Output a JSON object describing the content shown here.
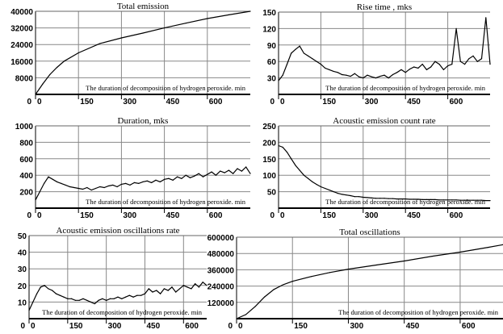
{
  "chart_data": [
    {
      "type": "line",
      "title": "Total emission",
      "xlabel": "The duration  of decomposition of hydrogen peroxide. min",
      "ylabel": "",
      "xlim": [
        0,
        750
      ],
      "ylim": [
        0,
        40000
      ],
      "yticks": [
        "8000",
        "16000",
        "24000",
        "32000",
        "40000"
      ],
      "xticks": [
        "0",
        "150",
        "300",
        "450",
        "600"
      ],
      "y0": "0",
      "grid": true,
      "x": [
        0,
        25,
        50,
        75,
        100,
        150,
        225,
        300,
        375,
        450,
        525,
        600,
        675,
        750
      ],
      "values": [
        0,
        5000,
        9500,
        13000,
        16000,
        20000,
        24500,
        27200,
        29500,
        32000,
        34300,
        36500,
        38300,
        40000
      ]
    },
    {
      "type": "line",
      "title": "Rise time , mks",
      "xlabel": "The duration  of decomposition of hydrogen peroxide. min",
      "ylabel": "",
      "xlim": [
        0,
        750
      ],
      "ylim": [
        0,
        150
      ],
      "yticks": [
        "30",
        "60",
        "90",
        "120",
        "150"
      ],
      "xticks": [
        "0",
        "150",
        "300",
        "450",
        "600"
      ],
      "y0": "0",
      "grid": true,
      "x": [
        0,
        15,
        30,
        45,
        60,
        75,
        90,
        105,
        120,
        135,
        150,
        165,
        180,
        195,
        210,
        225,
        240,
        255,
        270,
        285,
        300,
        315,
        330,
        345,
        360,
        375,
        390,
        405,
        420,
        435,
        450,
        465,
        480,
        495,
        510,
        525,
        540,
        555,
        570,
        585,
        600,
        615,
        630,
        645,
        660,
        675,
        690,
        705,
        720,
        735,
        750
      ],
      "values": [
        25,
        35,
        55,
        75,
        82,
        88,
        75,
        70,
        65,
        60,
        55,
        48,
        45,
        42,
        40,
        36,
        35,
        33,
        38,
        32,
        30,
        35,
        32,
        30,
        33,
        35,
        30,
        36,
        40,
        45,
        40,
        46,
        50,
        48,
        55,
        45,
        50,
        60,
        55,
        45,
        52,
        55,
        120,
        60,
        55,
        65,
        70,
        60,
        65,
        140,
        55
      ]
    },
    {
      "type": "line",
      "title": "Duration, mks",
      "xlabel": "The duration  of decomposition of hydrogen peroxide. min",
      "ylabel": "",
      "xlim": [
        0,
        750
      ],
      "ylim": [
        0,
        1000
      ],
      "yticks": [
        "200",
        "400",
        "600",
        "800",
        "1000"
      ],
      "xticks": [
        "0",
        "150",
        "300",
        "450",
        "600"
      ],
      "y0": "0",
      "grid": true,
      "x": [
        0,
        15,
        30,
        45,
        60,
        75,
        90,
        105,
        120,
        135,
        150,
        165,
        180,
        195,
        210,
        225,
        240,
        255,
        270,
        285,
        300,
        315,
        330,
        345,
        360,
        375,
        390,
        405,
        420,
        435,
        450,
        465,
        480,
        495,
        510,
        525,
        540,
        555,
        570,
        585,
        600,
        615,
        630,
        645,
        660,
        675,
        690,
        705,
        720,
        735,
        750
      ],
      "values": [
        100,
        200,
        300,
        380,
        350,
        320,
        300,
        280,
        260,
        250,
        240,
        230,
        250,
        220,
        240,
        260,
        250,
        270,
        280,
        260,
        290,
        300,
        280,
        310,
        300,
        320,
        330,
        310,
        340,
        320,
        350,
        360,
        340,
        380,
        360,
        400,
        370,
        390,
        420,
        380,
        410,
        440,
        400,
        450,
        430,
        460,
        420,
        480,
        450,
        500,
        420
      ]
    },
    {
      "type": "line",
      "title": "Acoustic emission count rate",
      "xlabel": "The duration  of decomposition of hydrogen peroxide. min",
      "ylabel": "",
      "xlim": [
        0,
        750
      ],
      "ylim": [
        0,
        250
      ],
      "yticks": [
        "50",
        "100",
        "150",
        "200",
        "250"
      ],
      "xticks": [
        "0",
        "150",
        "300",
        "450",
        "600"
      ],
      "y0": "0",
      "grid": true,
      "x": [
        0,
        15,
        30,
        45,
        60,
        75,
        90,
        105,
        120,
        135,
        150,
        165,
        180,
        195,
        210,
        225,
        240,
        255,
        270,
        285,
        300,
        315,
        330,
        345,
        360,
        375,
        390,
        405,
        420,
        435,
        450,
        465,
        480,
        495,
        510,
        525,
        540,
        555,
        570,
        585,
        600,
        615,
        630,
        645,
        660,
        675,
        690,
        705,
        720,
        735,
        750
      ],
      "values": [
        190,
        185,
        170,
        150,
        130,
        115,
        100,
        90,
        80,
        72,
        65,
        60,
        55,
        50,
        45,
        42,
        40,
        38,
        35,
        35,
        33,
        32,
        31,
        30,
        30,
        30,
        29,
        29,
        28,
        28,
        28,
        27,
        27,
        27,
        26,
        26,
        26,
        26,
        25,
        25,
        25,
        25,
        25,
        24,
        24,
        24,
        24,
        24,
        24,
        23,
        23
      ]
    },
    {
      "type": "line",
      "title": "Acoustic emission oscillations rate",
      "xlabel": "The duration  of decomposition of hydrogen peroxide. min",
      "ylabel": "",
      "xlim": [
        0,
        690
      ],
      "ylim": [
        0,
        50
      ],
      "yticks": [
        "10",
        "20",
        "30",
        "40",
        "50"
      ],
      "xticks": [
        "0",
        "150",
        "300",
        "450",
        "600"
      ],
      "y0": "0",
      "grid": true,
      "x": [
        0,
        15,
        30,
        45,
        60,
        75,
        90,
        105,
        120,
        135,
        150,
        165,
        180,
        195,
        210,
        225,
        240,
        255,
        270,
        285,
        300,
        315,
        330,
        345,
        360,
        375,
        390,
        405,
        420,
        435,
        450,
        465,
        480,
        495,
        510,
        525,
        540,
        555,
        570,
        585,
        600,
        615,
        630,
        645,
        660,
        675,
        690
      ],
      "values": [
        5,
        10,
        15,
        19,
        20,
        18,
        17,
        15,
        14,
        13,
        12,
        12,
        11,
        11,
        12,
        11,
        10,
        9,
        11,
        12,
        11,
        12,
        12,
        13,
        12,
        13,
        14,
        13,
        14,
        14,
        15,
        18,
        16,
        17,
        15,
        18,
        17,
        19,
        16,
        18,
        20,
        19,
        18,
        21,
        19,
        22,
        20
      ]
    },
    {
      "type": "line",
      "title": "Total oscillations",
      "xlabel": "The duration  of decomposition of hydrogen peroxide. min",
      "ylabel": "",
      "xlim": [
        0,
        715
      ],
      "ylim": [
        0,
        600000
      ],
      "yticks": [
        "120000",
        "240000",
        "360000",
        "480000",
        "600000"
      ],
      "xticks": [
        "0",
        "150",
        "300",
        "450",
        "600"
      ],
      "y0": "0",
      "grid": true,
      "x": [
        0,
        25,
        50,
        75,
        100,
        125,
        150,
        200,
        250,
        300,
        375,
        450,
        525,
        600,
        675,
        715
      ],
      "values": [
        0,
        30000,
        90000,
        160000,
        215000,
        250000,
        275000,
        310000,
        340000,
        365000,
        395000,
        425000,
        460000,
        490000,
        525000,
        545000
      ]
    }
  ]
}
